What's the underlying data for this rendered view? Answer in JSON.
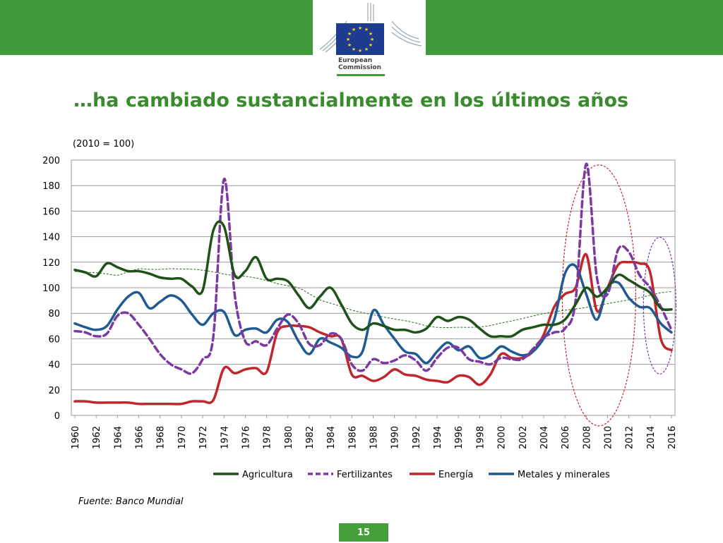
{
  "header": {
    "logo": {
      "icon": "eu-flag-icon",
      "line1": "European",
      "line2": "Commission"
    },
    "brand_color": "#3f9b3a"
  },
  "slide": {
    "title": "…ha cambiado sustancialmente en los últimos años",
    "unit_note": "(2010 = 100)",
    "source": "Fuente: Banco Mundial",
    "page_number": "15"
  },
  "chart_data": {
    "type": "line",
    "ylim": [
      0,
      200
    ],
    "yticks": [
      "0",
      "20",
      "40",
      "60",
      "80",
      "100",
      "120",
      "140",
      "160",
      "180",
      "200"
    ],
    "xticks": [
      "1960",
      "1962",
      "1964",
      "1966",
      "1968",
      "1970",
      "1972",
      "1974",
      "1976",
      "1978",
      "1980",
      "1982",
      "1984",
      "1986",
      "1988",
      "1990",
      "1992",
      "1994",
      "1996",
      "1998",
      "2000",
      "2002",
      "2004",
      "2006",
      "2008",
      "2010",
      "2012",
      "2014",
      "2016"
    ],
    "grid": true,
    "legend_position": "bottom",
    "x": [
      1960,
      1961,
      1962,
      1963,
      1964,
      1965,
      1966,
      1967,
      1968,
      1969,
      1970,
      1971,
      1972,
      1973,
      1974,
      1975,
      1976,
      1977,
      1978,
      1979,
      1980,
      1981,
      1982,
      1983,
      1984,
      1985,
      1986,
      1987,
      1988,
      1989,
      1990,
      1991,
      1992,
      1993,
      1994,
      1995,
      1996,
      1997,
      1998,
      1999,
      2000,
      2001,
      2002,
      2003,
      2004,
      2005,
      2006,
      2007,
      2008,
      2009,
      2010,
      2011,
      2012,
      2013,
      2014,
      2015,
      2016
    ],
    "series": [
      {
        "name": "Agricultura",
        "color": "#1e5218",
        "dash": "solid",
        "values": [
          114,
          112,
          109,
          119,
          116,
          113,
          113,
          111,
          108,
          107,
          107,
          101,
          98,
          145,
          148,
          110,
          113,
          124,
          107,
          107,
          105,
          94,
          84,
          93,
          100,
          87,
          72,
          67,
          72,
          70,
          67,
          67,
          65,
          68,
          77,
          74,
          77,
          75,
          68,
          62,
          62,
          62,
          67,
          69,
          71,
          71,
          75,
          87,
          100,
          93,
          100,
          110,
          106,
          101,
          96,
          84,
          83
        ]
      },
      {
        "name": "Fertilizantes",
        "color": "#7b3aa0",
        "dash": "dashed",
        "values": [
          66,
          65,
          62,
          64,
          78,
          80,
          71,
          60,
          48,
          40,
          36,
          33,
          44,
          62,
          185,
          95,
          58,
          58,
          55,
          68,
          79,
          72,
          56,
          55,
          64,
          60,
          40,
          35,
          44,
          41,
          43,
          47,
          43,
          35,
          45,
          53,
          53,
          44,
          42,
          40,
          45,
          44,
          44,
          52,
          61,
          65,
          68,
          90,
          197,
          108,
          95,
          130,
          128,
          110,
          100,
          85,
          67
        ]
      },
      {
        "name": "Energía",
        "color": "#c0272d",
        "dash": "solid",
        "values": [
          11,
          11,
          10,
          10,
          10,
          10,
          9,
          9,
          9,
          9,
          9,
          11,
          11,
          12,
          37,
          33,
          36,
          37,
          34,
          65,
          70,
          70,
          69,
          65,
          62,
          60,
          32,
          31,
          27,
          30,
          36,
          32,
          31,
          28,
          27,
          26,
          31,
          30,
          24,
          32,
          48,
          45,
          45,
          50,
          63,
          85,
          95,
          100,
          126,
          82,
          100,
          118,
          120,
          119,
          112,
          60,
          51
        ]
      },
      {
        "name": "Metales y minerales",
        "color": "#1f5b92",
        "dash": "solid",
        "values": [
          72,
          69,
          67,
          70,
          83,
          93,
          96,
          84,
          89,
          94,
          90,
          79,
          71,
          80,
          81,
          63,
          67,
          68,
          65,
          75,
          73,
          58,
          48,
          60,
          57,
          53,
          46,
          50,
          82,
          71,
          60,
          50,
          48,
          41,
          50,
          57,
          51,
          54,
          45,
          47,
          54,
          50,
          47,
          50,
          60,
          75,
          111,
          117,
          95,
          75,
          100,
          104,
          92,
          85,
          84,
          72,
          65
        ]
      }
    ]
  }
}
